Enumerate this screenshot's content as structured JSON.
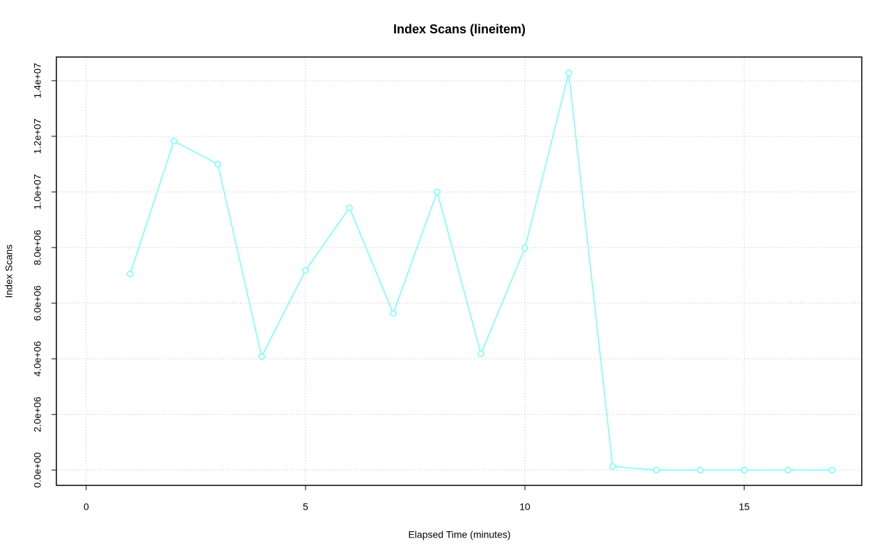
{
  "chart_data": {
    "type": "line",
    "title": "Index Scans (lineitem)",
    "x_label": "Elapsed Time (minutes)",
    "y_label": "Index Scans",
    "x": [
      1,
      2,
      3,
      4,
      5,
      6,
      7,
      8,
      9,
      10,
      11,
      12,
      13,
      14,
      15,
      16,
      17
    ],
    "values": [
      7050000,
      11830000,
      11000000,
      4080000,
      7180000,
      9430000,
      5630000,
      10000000,
      4180000,
      7980000,
      14280000,
      130000,
      0,
      0,
      0,
      0,
      0
    ],
    "color": "#70ffff",
    "xlim": [
      -0.68,
      17.68
    ],
    "xticks": [
      0,
      5,
      10,
      15
    ],
    "ylim": [
      -550000,
      14850000
    ],
    "yticks": [
      {
        "value": 0,
        "label": "0.0e+00"
      },
      {
        "value": 2000000,
        "label": "2.0e+06"
      },
      {
        "value": 4000000,
        "label": "4.0e+06"
      },
      {
        "value": 6000000,
        "label": "6.0e+06"
      },
      {
        "value": 8000000,
        "label": "8.0e+06"
      },
      {
        "value": 10000000,
        "label": "1.0e+07"
      },
      {
        "value": 12000000,
        "label": "1.2e+07"
      },
      {
        "value": 14000000,
        "label": "1.4e+07"
      }
    ],
    "grid": true
  }
}
